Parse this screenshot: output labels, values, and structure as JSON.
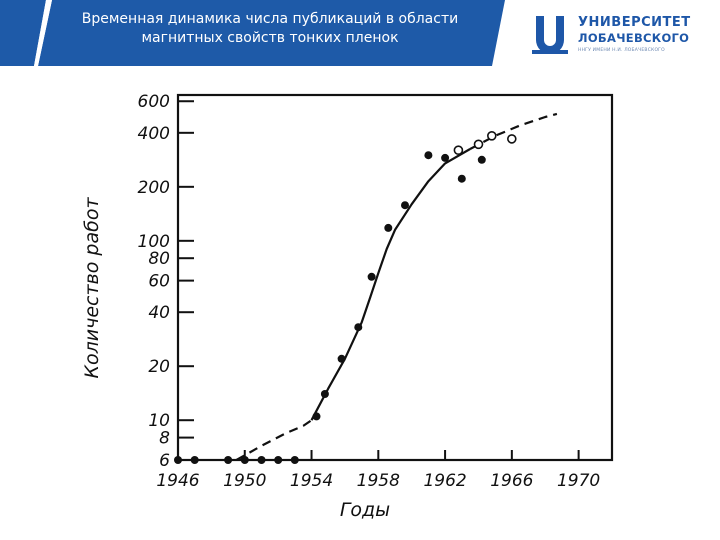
{
  "slide": {
    "title_line1": "Временная динамика числа публикаций в области",
    "title_line2": "магнитных свойств тонких пленок",
    "header_color": "#1e5aa8",
    "header_dark_color": "#12397a"
  },
  "logo": {
    "line1": "УНИВЕРСИТЕТ",
    "line2": "ЛОБАЧЕВСКОГО",
    "tagline": "ННГУ ИМЕНИ Н.И. ЛОБАЧЕВСКОГО",
    "color": "#1e57a8"
  },
  "chart_data": {
    "type": "scatter",
    "xlabel": "Годы",
    "ylabel": "Количество работ",
    "x_ticks": [
      1946,
      1950,
      1954,
      1958,
      1962,
      1966,
      1970
    ],
    "y_ticks": [
      6,
      8,
      10,
      20,
      40,
      60,
      80,
      100,
      200,
      400,
      600
    ],
    "xlim": [
      1946,
      1972
    ],
    "ylim": [
      6,
      650
    ],
    "y_scale": "log",
    "grid": false,
    "series": [
      {
        "marker": "filled-circle",
        "points": [
          [
            1946,
            6
          ],
          [
            1947,
            6
          ],
          [
            1949,
            6
          ],
          [
            1950,
            6
          ],
          [
            1951,
            6
          ],
          [
            1952,
            6
          ],
          [
            1953,
            6
          ],
          [
            1954.3,
            10.5
          ],
          [
            1954.8,
            14
          ],
          [
            1955.8,
            22
          ],
          [
            1956.8,
            33
          ],
          [
            1957.6,
            63
          ],
          [
            1958.6,
            118
          ],
          [
            1959.6,
            158
          ],
          [
            1961,
            300
          ],
          [
            1962,
            290
          ],
          [
            1963,
            222
          ],
          [
            1964.2,
            283
          ]
        ]
      },
      {
        "marker": "open-circle",
        "points": [
          [
            1962.8,
            320
          ],
          [
            1964,
            345
          ],
          [
            1964.8,
            385
          ],
          [
            1966,
            370
          ]
        ]
      },
      {
        "line": "solid",
        "points": [
          [
            1954,
            10
          ],
          [
            1955,
            15
          ],
          [
            1956,
            22
          ],
          [
            1957,
            35
          ],
          [
            1957.5,
            48
          ],
          [
            1958,
            66
          ],
          [
            1958.5,
            90
          ],
          [
            1959,
            115
          ],
          [
            1960,
            160
          ],
          [
            1961,
            215
          ],
          [
            1962,
            270
          ],
          [
            1963.5,
            325
          ]
        ]
      },
      {
        "line": "dashed",
        "points": [
          [
            1949.5,
            6
          ],
          [
            1951,
            7.2
          ],
          [
            1952.5,
            8.5
          ],
          [
            1953.5,
            9.3
          ],
          [
            1954,
            10
          ]
        ]
      },
      {
        "line": "dashed",
        "points": [
          [
            1963.5,
            325
          ],
          [
            1965,
            385
          ],
          [
            1966.5,
            440
          ],
          [
            1968,
            490
          ],
          [
            1968.7,
            510
          ]
        ]
      }
    ]
  }
}
